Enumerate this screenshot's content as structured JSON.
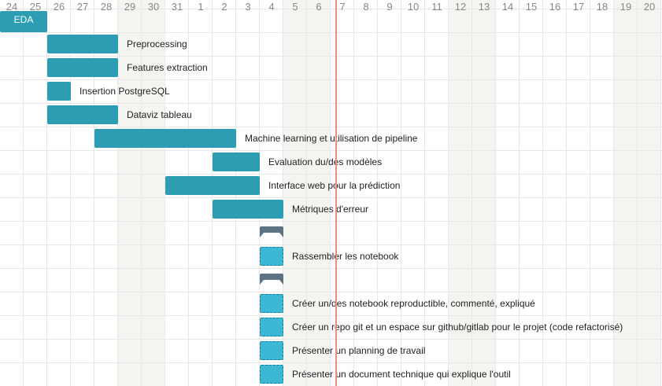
{
  "header": {
    "days": [
      "24",
      "25",
      "26",
      "27",
      "28",
      "29",
      "30",
      "31",
      "1",
      "2",
      "3",
      "4",
      "5",
      "6",
      "7",
      "8",
      "9",
      "10",
      "11",
      "12",
      "13",
      "14",
      "15",
      "16",
      "17",
      "18",
      "19",
      "20"
    ],
    "weekend_indices": [
      5,
      6,
      12,
      13,
      19,
      20,
      26,
      27
    ]
  },
  "today_index": 14,
  "colors": {
    "task": "#2d9db4",
    "subtask": "#3db8d4",
    "group": "#5b7383",
    "today": "#f08a8a",
    "weekend": "#f4f5f1",
    "grid": "#e8e8e8"
  },
  "rows": [
    {
      "type": "task",
      "label": "EDA",
      "start": 0,
      "duration": 2,
      "label_inside": true
    },
    {
      "type": "task",
      "label": "Preprocessing",
      "start": 2,
      "duration": 3
    },
    {
      "type": "task",
      "label": "Features extraction",
      "start": 2,
      "duration": 3
    },
    {
      "type": "task",
      "label": "Insertion PostgreSQL",
      "start": 2,
      "duration": 1
    },
    {
      "type": "task",
      "label": "Dataviz tableau",
      "start": 2,
      "duration": 3
    },
    {
      "type": "task",
      "label": "Machine learning et utilisation de pipeline",
      "start": 4,
      "duration": 6
    },
    {
      "type": "task",
      "label": "Evaluation du/des modèles",
      "start": 9,
      "duration": 2
    },
    {
      "type": "task",
      "label": "Interface web pour la prédiction",
      "start": 7,
      "duration": 4
    },
    {
      "type": "task",
      "label": "Métriques d'erreur",
      "start": 9,
      "duration": 3
    },
    {
      "type": "group",
      "start": 11
    },
    {
      "type": "subtask",
      "label": "Rassembler les notebook",
      "start": 11
    },
    {
      "type": "group",
      "start": 11
    },
    {
      "type": "subtask",
      "label": "Créer un/des notebook reproductible, commenté, expliqué",
      "start": 11
    },
    {
      "type": "subtask",
      "label": "Créer un repo git et un espace sur github/gitlab pour le projet (code refactorisé)",
      "start": 11
    },
    {
      "type": "subtask",
      "label": "Présenter un planning de travail",
      "start": 11
    },
    {
      "type": "subtask",
      "label": "Présenter un document technique qui explique l'outil",
      "start": 11
    }
  ]
}
